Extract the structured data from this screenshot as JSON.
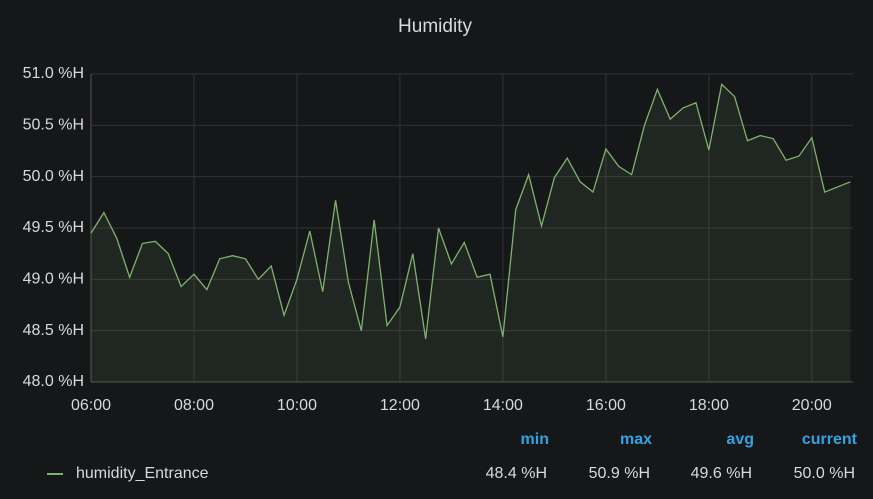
{
  "chart_data": {
    "type": "line",
    "title": "Humidity",
    "x": [
      6,
      6.25,
      6.5,
      6.75,
      7,
      7.25,
      7.5,
      7.75,
      8,
      8.25,
      8.5,
      8.75,
      9,
      9.25,
      9.5,
      9.75,
      10,
      10.25,
      10.5,
      10.75,
      11,
      11.25,
      11.5,
      11.75,
      12,
      12.25,
      12.5,
      12.75,
      13,
      13.25,
      13.5,
      13.75,
      14,
      14.25,
      14.5,
      14.75,
      15,
      15.25,
      15.5,
      15.75,
      16,
      16.25,
      16.5,
      16.75,
      17,
      17.25,
      17.5,
      17.75,
      18,
      18.25,
      18.5,
      18.75,
      19,
      19.25,
      19.5,
      19.75,
      20,
      20.25,
      20.5,
      20.75
    ],
    "series": [
      {
        "name": "humidity_Entrance",
        "color": "#7eb26d",
        "values": [
          49.45,
          49.65,
          49.4,
          49.02,
          49.35,
          49.37,
          49.25,
          48.93,
          49.05,
          48.9,
          49.2,
          49.23,
          49.2,
          49.0,
          49.13,
          48.65,
          49.0,
          49.47,
          48.88,
          49.77,
          48.97,
          48.5,
          49.58,
          48.55,
          48.73,
          49.25,
          48.42,
          49.5,
          49.15,
          49.36,
          49.02,
          49.05,
          48.44,
          49.68,
          50.02,
          49.52,
          49.99,
          50.18,
          49.95,
          49.85,
          50.27,
          50.1,
          50.02,
          50.5,
          50.85,
          50.56,
          50.67,
          50.72,
          50.26,
          50.9,
          50.78,
          50.35,
          50.4,
          50.37,
          50.16,
          50.2,
          50.38,
          49.85,
          49.9,
          49.95
        ]
      }
    ],
    "xlim": [
      6,
      20.8
    ],
    "xticks": [
      {
        "value": 6,
        "label": "06:00"
      },
      {
        "value": 8,
        "label": "08:00"
      },
      {
        "value": 10,
        "label": "10:00"
      },
      {
        "value": 12,
        "label": "12:00"
      },
      {
        "value": 14,
        "label": "14:00"
      },
      {
        "value": 16,
        "label": "16:00"
      },
      {
        "value": 18,
        "label": "18:00"
      },
      {
        "value": 20,
        "label": "20:00"
      }
    ],
    "ylim": [
      48,
      51
    ],
    "yticks": [
      {
        "value": 48,
        "label": "48.0 %H"
      },
      {
        "value": 48.5,
        "label": "48.5 %H"
      },
      {
        "value": 49,
        "label": "49.0 %H"
      },
      {
        "value": 49.5,
        "label": "49.5 %H"
      },
      {
        "value": 50,
        "label": "50.0 %H"
      },
      {
        "value": 50.5,
        "label": "50.5 %H"
      },
      {
        "value": 51,
        "label": "51.0 %H"
      }
    ],
    "grid": true,
    "legend": {
      "columns": [
        "min",
        "max",
        "avg",
        "current"
      ],
      "values": [
        "48.4 %H",
        "50.9 %H",
        "49.6 %H",
        "50.0 %H"
      ]
    }
  }
}
